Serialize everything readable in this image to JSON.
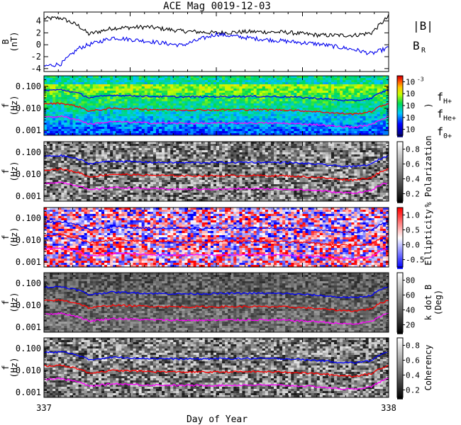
{
  "chart_data": {
    "type": "heatmap",
    "title": "ACE Mag 0019-12-03",
    "xlabel": "Day of Year",
    "xlim": [
      337,
      338
    ],
    "x_ticks": [
      "337",
      "338"
    ],
    "panels": [
      {
        "id": "field",
        "type": "line",
        "ylabel": "B",
        "yunit": "(nT)",
        "ylim": [
          -4.5,
          5.5
        ],
        "y_ticks": [
          "4",
          "2",
          "0",
          "-2",
          "-4"
        ],
        "y_tick_values": [
          4,
          2,
          0,
          -2,
          -4
        ],
        "series": [
          {
            "name": "|B|",
            "color": "#000000",
            "x": [
              337.0,
              337.05,
              337.1,
              337.13,
              337.2,
              337.3,
              337.4,
              337.5,
              337.6,
              337.7,
              337.8,
              337.9,
              337.95,
              338.0
            ],
            "y": [
              4.4,
              4.5,
              3.2,
              1.8,
              2.8,
              3.0,
              2.3,
              2.0,
              2.2,
              2.1,
              1.6,
              1.6,
              2.0,
              4.8
            ]
          },
          {
            "name": "B",
            "name_sub": "R",
            "color": "#0000ee",
            "x": [
              337.0,
              337.05,
              337.1,
              337.13,
              337.2,
              337.3,
              337.4,
              337.5,
              337.6,
              337.7,
              337.8,
              337.9,
              337.95,
              338.0
            ],
            "y": [
              -3.6,
              -3.2,
              -0.6,
              0.0,
              1.2,
              0.6,
              -0.1,
              1.8,
              1.1,
              0.6,
              0.1,
              -0.8,
              -1.5,
              -0.5
            ]
          }
        ]
      },
      {
        "id": "spectrum",
        "type": "heatmap",
        "ylabel": "f",
        "yunit": "(Hz)",
        "ylim": [
          0.0006,
          0.3
        ],
        "y_scale": "log",
        "y_ticks": [
          "0.100",
          "0.010",
          "0.001"
        ],
        "y_tick_values": [
          0.1,
          0.01,
          0.001
        ],
        "colormap": "rainbow",
        "colorbar_ticks": [
          "10",
          "10",
          "10",
          "10",
          "10"
        ],
        "colorbar_tick_exponents": [
          "-3",
          "",
          "",
          "",
          ""
        ],
        "colorbar_label": ")"
      },
      {
        "id": "polarization",
        "type": "heatmap",
        "ylabel": "f",
        "yunit": "(Hz)",
        "ylim": [
          0.0006,
          0.3
        ],
        "y_scale": "log",
        "y_ticks": [
          "0.100",
          "0.010",
          "0.001"
        ],
        "y_tick_values": [
          0.1,
          0.01,
          0.001
        ],
        "colormap": "gray",
        "colorbar_ticks": [
          "0.8",
          "0.6",
          "0.4",
          "0.2"
        ],
        "colorbar_label": "% Polarization"
      },
      {
        "id": "ellipticity",
        "type": "heatmap",
        "ylabel": "f",
        "yunit": "(Hz)",
        "ylim": [
          0.0006,
          0.3
        ],
        "y_scale": "log",
        "y_ticks": [
          "0.100",
          "0.010",
          "0.001"
        ],
        "y_tick_values": [
          0.1,
          0.01,
          0.001
        ],
        "colormap": "blue-white-red",
        "colorbar_ticks": [
          "1.0",
          "0.5",
          "0.0",
          "-0.5"
        ],
        "colorbar_label": "Ellipticity"
      },
      {
        "id": "kdotb",
        "type": "heatmap",
        "ylabel": "f",
        "yunit": "(Hz)",
        "ylim": [
          0.0006,
          0.3
        ],
        "y_scale": "log",
        "y_ticks": [
          "0.100",
          "0.010",
          "0.001"
        ],
        "y_tick_values": [
          0.1,
          0.01,
          0.001
        ],
        "colormap": "gray",
        "colorbar_ticks": [
          "80",
          "60",
          "40",
          "20"
        ],
        "colorbar_label": "k dot B",
        "colorbar_unit": "(Deg)"
      },
      {
        "id": "coherency",
        "type": "heatmap",
        "ylabel": "f",
        "yunit": "(Hz)",
        "ylim": [
          0.0006,
          0.3
        ],
        "y_scale": "log",
        "y_ticks": [
          "0.100",
          "0.010",
          "0.001"
        ],
        "y_tick_values": [
          0.1,
          0.01,
          0.001
        ],
        "colormap": "gray",
        "colorbar_ticks": [
          "0.8",
          "0.6",
          "0.4",
          "0.2"
        ],
        "colorbar_label": "Coherency"
      }
    ],
    "gyro_lines": [
      {
        "name": "f",
        "name_sub": "H+",
        "color": "#0000ff",
        "x": [
          337.0,
          337.05,
          337.1,
          337.13,
          337.2,
          337.3,
          337.4,
          337.5,
          337.6,
          337.7,
          337.8,
          337.85,
          337.9,
          337.95,
          338.0
        ],
        "y": [
          0.065,
          0.07,
          0.048,
          0.03,
          0.04,
          0.035,
          0.033,
          0.034,
          0.035,
          0.034,
          0.028,
          0.024,
          0.022,
          0.028,
          0.07
        ]
      },
      {
        "name": "f",
        "name_sub": "He+",
        "color": "#ff0000",
        "x": [
          337.0,
          337.05,
          337.1,
          337.13,
          337.2,
          337.3,
          337.4,
          337.5,
          337.6,
          337.7,
          337.8,
          337.85,
          337.9,
          337.95,
          338.0
        ],
        "y": [
          0.016,
          0.017,
          0.012,
          0.0075,
          0.01,
          0.009,
          0.0085,
          0.0085,
          0.0088,
          0.0085,
          0.007,
          0.006,
          0.0055,
          0.007,
          0.017
        ]
      },
      {
        "name": "f",
        "name_sub": "0+",
        "color": "#ff00ff",
        "x": [
          337.0,
          337.05,
          337.1,
          337.13,
          337.2,
          337.3,
          337.4,
          337.5,
          337.6,
          337.7,
          337.8,
          337.85,
          337.9,
          337.95,
          338.0
        ],
        "y": [
          0.004,
          0.0043,
          0.003,
          0.0019,
          0.0025,
          0.0022,
          0.0021,
          0.0021,
          0.0022,
          0.0021,
          0.0018,
          0.0015,
          0.0014,
          0.0018,
          0.0043
        ]
      }
    ]
  }
}
